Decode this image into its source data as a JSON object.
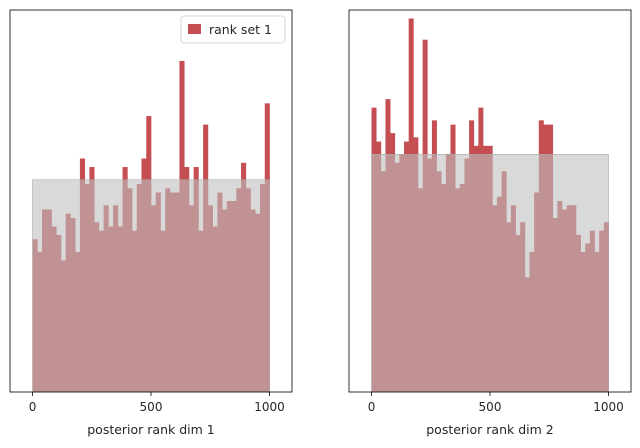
{
  "chart_data": [
    {
      "type": "histogram",
      "xlabel": "posterior rank dim 1",
      "ylabel": "",
      "xticks": [
        "0",
        "500",
        "1000"
      ],
      "xlim": [
        -95,
        1095
      ],
      "ylim": [
        0,
        90
      ],
      "bin_edges_range": [
        0,
        1000
      ],
      "expected_band": [
        0,
        50
      ],
      "values": [
        36,
        33,
        43,
        43,
        39,
        37,
        31,
        42,
        41,
        33,
        55,
        49,
        53,
        40,
        38,
        44,
        39,
        44,
        39,
        53,
        48,
        38,
        49,
        55,
        65,
        44,
        47,
        38,
        48,
        47,
        47,
        78,
        53,
        44,
        53,
        38,
        63,
        44,
        39,
        47,
        43,
        45,
        45,
        48,
        54,
        48,
        43,
        42,
        49,
        68
      ]
    },
    {
      "type": "histogram",
      "xlabel": "posterior rank dim 2",
      "ylabel": "",
      "xticks": [
        "0",
        "500",
        "1000"
      ],
      "xlim": [
        -95,
        1095
      ],
      "ylim": [
        0,
        90
      ],
      "bin_edges_range": [
        0,
        1000
      ],
      "expected_band": [
        0,
        56
      ],
      "values": [
        67,
        59,
        52,
        69,
        61,
        54,
        56,
        59,
        88,
        60,
        48,
        83,
        55,
        64,
        52,
        49,
        56,
        63,
        48,
        49,
        55,
        64,
        58,
        67,
        58,
        58,
        44,
        46,
        52,
        40,
        44,
        37,
        40,
        27,
        33,
        47,
        64,
        63,
        63,
        41,
        45,
        43,
        44,
        44,
        37,
        33,
        35,
        38,
        33,
        38,
        40
      ]
    }
  ],
  "legend": {
    "entries": [
      {
        "label": "rank set 1",
        "color": "#c44e52"
      }
    ]
  },
  "colors": {
    "bar": "#c44e52",
    "band": "#bfbfbf"
  }
}
